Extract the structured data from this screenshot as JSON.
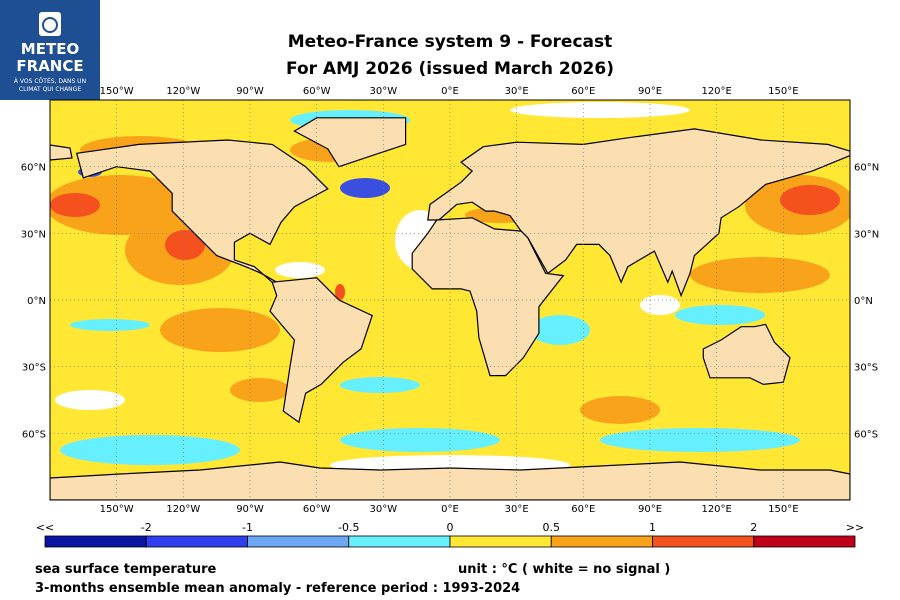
{
  "logo": {
    "line1": "METEO",
    "line2": "FRANCE",
    "tagline1": "À VOS CÔTÉS, DANS UN",
    "tagline2": "CLIMAT QUI CHANGE"
  },
  "title": {
    "line1": "Meteo-France system 9  -  Forecast",
    "line2": "For AMJ 2026      (issued March 2026)"
  },
  "map": {
    "longitude_labels": [
      "150°W",
      "120°W",
      "90°W",
      "60°W",
      "30°W",
      "0°E",
      "30°E",
      "60°E",
      "90°E",
      "120°E",
      "150°E"
    ],
    "latitude_labels": [
      "60°N",
      "30°N",
      "0°N",
      "30°S",
      "60°S"
    ]
  },
  "colorbar": {
    "labels": [
      "<<",
      "-2",
      "-1",
      "-0.5",
      "0",
      "0.5",
      "1",
      "2",
      ">>"
    ]
  },
  "footer": {
    "variable": "sea surface temperature",
    "unit": "unit : °C  ( white = no signal )",
    "description": "3-months ensemble mean anomaly - reference period : 1993-2024"
  }
}
